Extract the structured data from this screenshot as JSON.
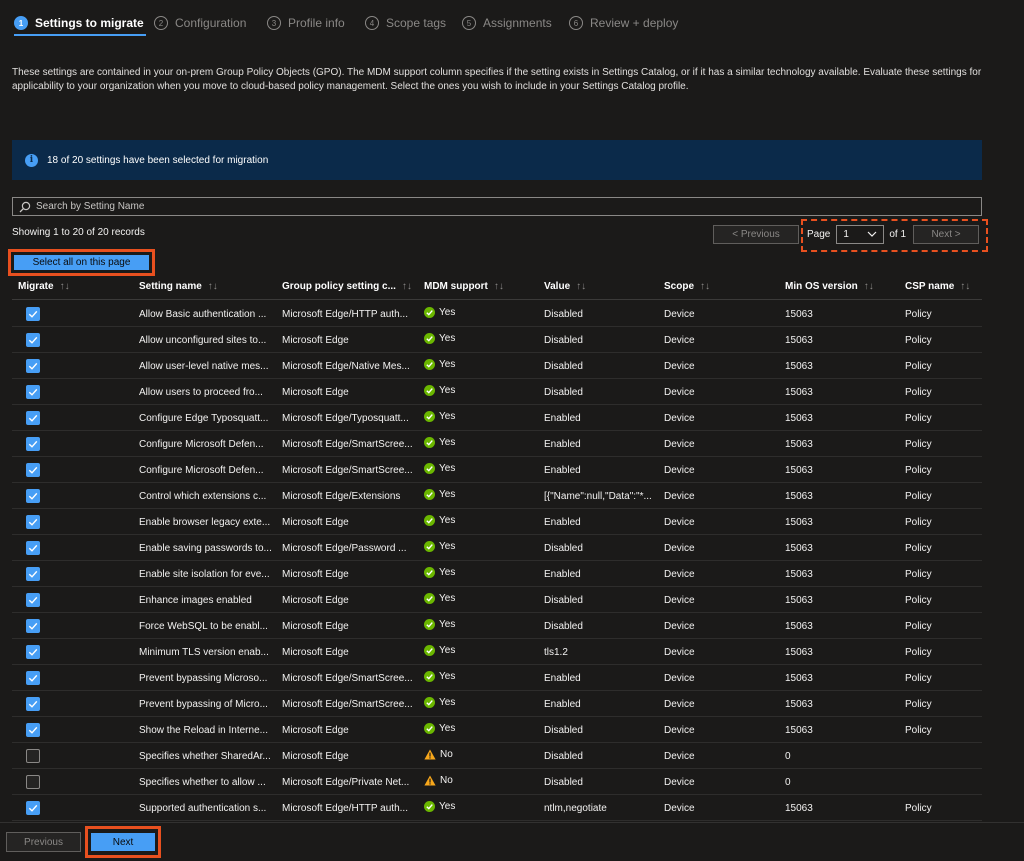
{
  "wizard": {
    "steps": [
      {
        "num": "1",
        "label": "Settings to migrate"
      },
      {
        "num": "2",
        "label": "Configuration"
      },
      {
        "num": "3",
        "label": "Profile info"
      },
      {
        "num": "4",
        "label": "Scope tags"
      },
      {
        "num": "5",
        "label": "Assignments"
      },
      {
        "num": "6",
        "label": "Review + deploy"
      }
    ]
  },
  "description": "These settings are contained in your on-prem Group Policy Objects (GPO). The MDM support column specifies if the setting exists in Settings Catalog, or if it has a similar technology available. Evaluate these settings for applicability to your organization when you move to cloud-based policy management. Select the ones you wish to include in your Settings Catalog profile.",
  "info": {
    "icon": "info-icon",
    "text": "18 of 20 settings have been selected for migration"
  },
  "search": {
    "placeholder": "Search by Setting Name",
    "icon": "search-icon"
  },
  "records": "Showing 1 to 20 of 20 records",
  "pager": {
    "prev": "< Previous",
    "page_label": "Page",
    "page_value": "1",
    "of_label": "of 1",
    "next": "Next >"
  },
  "select_all": "Select all on this page",
  "sort_glyph": "↑↓",
  "table": {
    "columns": [
      "Migrate",
      "Setting name",
      "Group policy setting c...",
      "MDM support",
      "Value",
      "Scope",
      "Min OS version",
      "CSP name"
    ],
    "rows": [
      {
        "checked": true,
        "name": "Allow Basic authentication ...",
        "gp": "Microsoft Edge/HTTP auth...",
        "mdm": "Yes",
        "value": "Disabled",
        "scope": "Device",
        "minos": "15063",
        "csp": "Policy"
      },
      {
        "checked": true,
        "name": "Allow unconfigured sites to...",
        "gp": "Microsoft Edge",
        "mdm": "Yes",
        "value": "Disabled",
        "scope": "Device",
        "minos": "15063",
        "csp": "Policy"
      },
      {
        "checked": true,
        "name": "Allow user-level native mes...",
        "gp": "Microsoft Edge/Native Mes...",
        "mdm": "Yes",
        "value": "Disabled",
        "scope": "Device",
        "minos": "15063",
        "csp": "Policy"
      },
      {
        "checked": true,
        "name": "Allow users to proceed fro...",
        "gp": "Microsoft Edge",
        "mdm": "Yes",
        "value": "Disabled",
        "scope": "Device",
        "minos": "15063",
        "csp": "Policy"
      },
      {
        "checked": true,
        "name": "Configure Edge Typosquatt...",
        "gp": "Microsoft Edge/Typosquatt...",
        "mdm": "Yes",
        "value": "Enabled",
        "scope": "Device",
        "minos": "15063",
        "csp": "Policy"
      },
      {
        "checked": true,
        "name": "Configure Microsoft Defen...",
        "gp": "Microsoft Edge/SmartScree...",
        "mdm": "Yes",
        "value": "Enabled",
        "scope": "Device",
        "minos": "15063",
        "csp": "Policy"
      },
      {
        "checked": true,
        "name": "Configure Microsoft Defen...",
        "gp": "Microsoft Edge/SmartScree...",
        "mdm": "Yes",
        "value": "Enabled",
        "scope": "Device",
        "minos": "15063",
        "csp": "Policy"
      },
      {
        "checked": true,
        "name": "Control which extensions c...",
        "gp": "Microsoft Edge/Extensions",
        "mdm": "Yes",
        "value": "[{\"Name\":null,\"Data\":\"*...",
        "scope": "Device",
        "minos": "15063",
        "csp": "Policy"
      },
      {
        "checked": true,
        "name": "Enable browser legacy exte...",
        "gp": "Microsoft Edge",
        "mdm": "Yes",
        "value": "Enabled",
        "scope": "Device",
        "minos": "15063",
        "csp": "Policy"
      },
      {
        "checked": true,
        "name": "Enable saving passwords to...",
        "gp": "Microsoft Edge/Password ...",
        "mdm": "Yes",
        "value": "Disabled",
        "scope": "Device",
        "minos": "15063",
        "csp": "Policy"
      },
      {
        "checked": true,
        "name": "Enable site isolation for eve...",
        "gp": "Microsoft Edge",
        "mdm": "Yes",
        "value": "Enabled",
        "scope": "Device",
        "minos": "15063",
        "csp": "Policy"
      },
      {
        "checked": true,
        "name": "Enhance images enabled",
        "gp": "Microsoft Edge",
        "mdm": "Yes",
        "value": "Disabled",
        "scope": "Device",
        "minos": "15063",
        "csp": "Policy"
      },
      {
        "checked": true,
        "name": "Force WebSQL to be enabl...",
        "gp": "Microsoft Edge",
        "mdm": "Yes",
        "value": "Disabled",
        "scope": "Device",
        "minos": "15063",
        "csp": "Policy"
      },
      {
        "checked": true,
        "name": "Minimum TLS version enab...",
        "gp": "Microsoft Edge",
        "mdm": "Yes",
        "value": "tls1.2",
        "scope": "Device",
        "minos": "15063",
        "csp": "Policy"
      },
      {
        "checked": true,
        "name": "Prevent bypassing Microso...",
        "gp": "Microsoft Edge/SmartScree...",
        "mdm": "Yes",
        "value": "Enabled",
        "scope": "Device",
        "minos": "15063",
        "csp": "Policy"
      },
      {
        "checked": true,
        "name": "Prevent bypassing of Micro...",
        "gp": "Microsoft Edge/SmartScree...",
        "mdm": "Yes",
        "value": "Enabled",
        "scope": "Device",
        "minos": "15063",
        "csp": "Policy"
      },
      {
        "checked": true,
        "name": "Show the Reload in Interne...",
        "gp": "Microsoft Edge",
        "mdm": "Yes",
        "value": "Disabled",
        "scope": "Device",
        "minos": "15063",
        "csp": "Policy"
      },
      {
        "checked": false,
        "name": "Specifies whether SharedAr...",
        "gp": "Microsoft Edge",
        "mdm": "No",
        "value": "Disabled",
        "scope": "Device",
        "minos": "0",
        "csp": ""
      },
      {
        "checked": false,
        "name": "Specifies whether to allow ...",
        "gp": "Microsoft Edge/Private Net...",
        "mdm": "No",
        "value": "Disabled",
        "scope": "Device",
        "minos": "0",
        "csp": ""
      },
      {
        "checked": true,
        "name": "Supported authentication s...",
        "gp": "Microsoft Edge/HTTP auth...",
        "mdm": "Yes",
        "value": "ntlm,negotiate",
        "scope": "Device",
        "minos": "15063",
        "csp": "Policy"
      }
    ]
  },
  "footer": {
    "prev": "Previous",
    "next": "Next"
  },
  "colors": {
    "accent": "#479ef5",
    "highlight": "#e8501f",
    "success": "#6bb700",
    "warning": "#f7a71b",
    "background": "#1b1a19"
  }
}
